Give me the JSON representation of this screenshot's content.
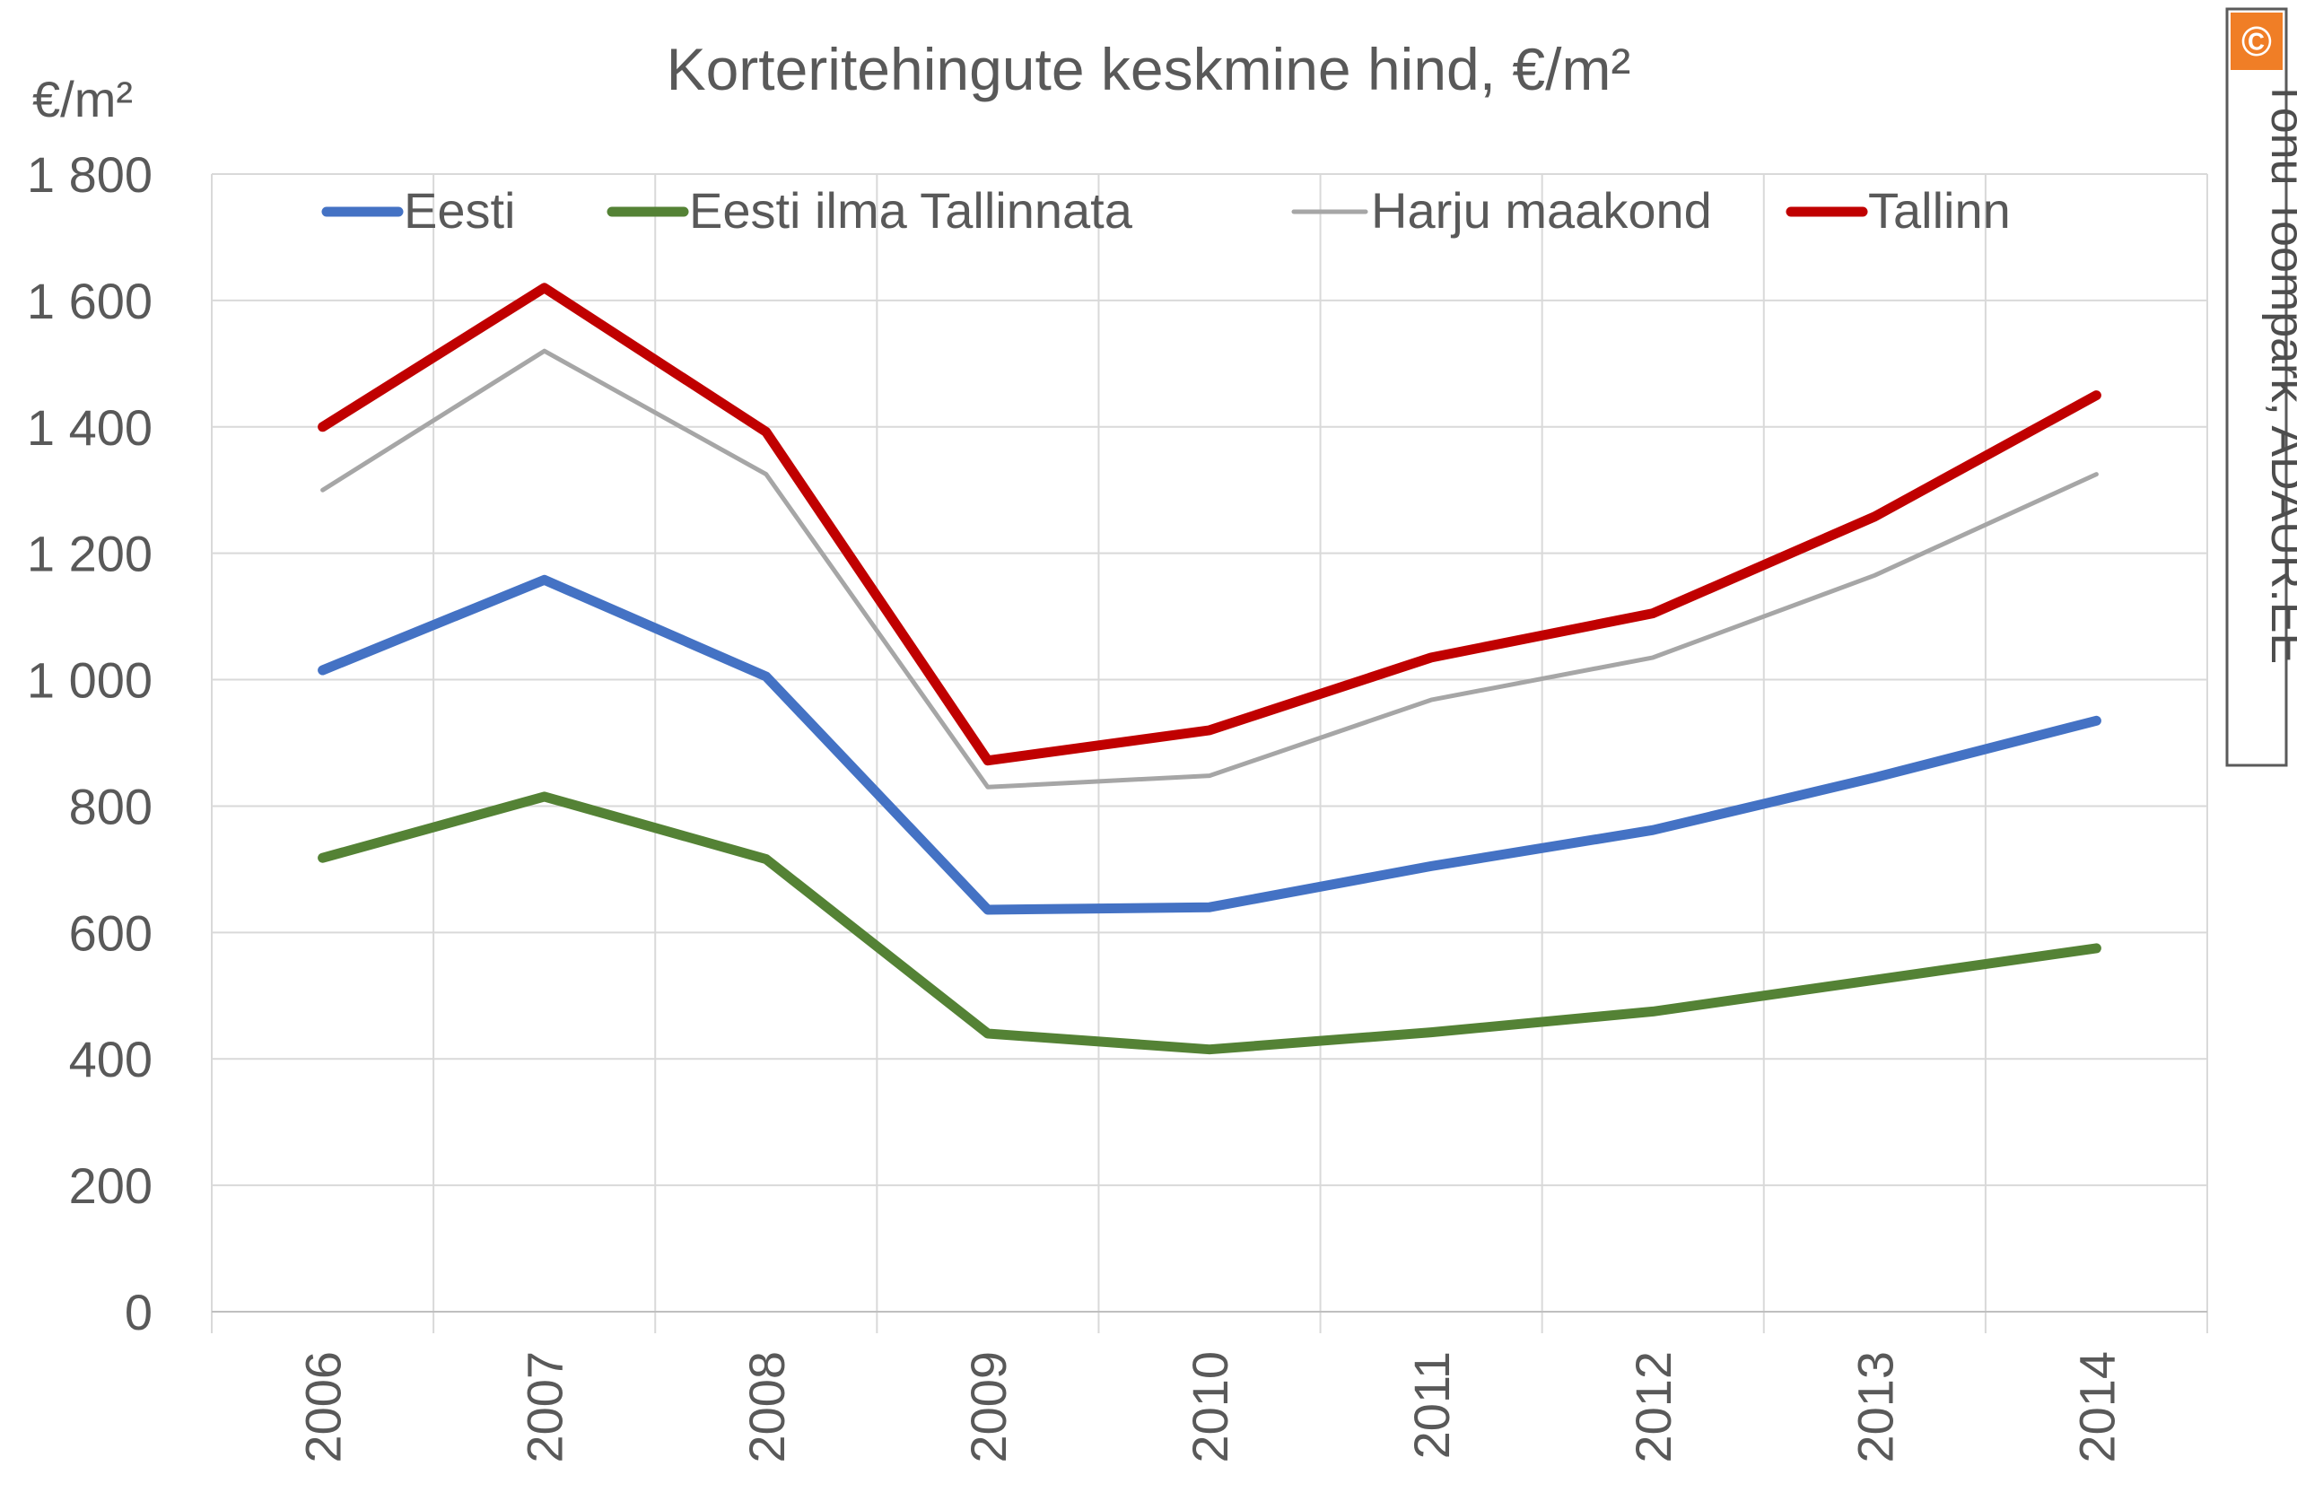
{
  "chart_data": {
    "type": "line",
    "title": "Korteritehingute keskmine hind, €/m²",
    "ylabel": "€/m²",
    "xlabel": "",
    "categories": [
      "2006",
      "2007",
      "2008",
      "2009",
      "2010",
      "2011",
      "2012",
      "2013",
      "2014"
    ],
    "ylim": [
      0,
      1800
    ],
    "yticks": [
      {
        "value": 0,
        "label": "0"
      },
      {
        "value": 200,
        "label": "200"
      },
      {
        "value": 400,
        "label": "400"
      },
      {
        "value": 600,
        "label": "600"
      },
      {
        "value": 800,
        "label": "800"
      },
      {
        "value": 1000,
        "label": "1 000"
      },
      {
        "value": 1200,
        "label": "1 200"
      },
      {
        "value": 1400,
        "label": "1 400"
      },
      {
        "value": 1600,
        "label": "1 600"
      },
      {
        "value": 1800,
        "label": "1 800"
      }
    ],
    "grid": true,
    "legend_position": "top",
    "series": [
      {
        "name": "Eesti",
        "color": "#4472c4",
        "width": "thick",
        "values": [
          1015,
          1158,
          1005,
          636,
          640,
          705,
          762,
          845,
          935
        ]
      },
      {
        "name": "Eesti ilma Tallinnata",
        "color": "#548235",
        "width": "thick",
        "values": [
          718,
          815,
          716,
          440,
          415,
          442,
          475,
          525,
          575
        ]
      },
      {
        "name": "Harju maakond",
        "color": "#a6a6a6",
        "width": "thin",
        "values": [
          1300,
          1520,
          1325,
          830,
          848,
          968,
          1035,
          1165,
          1325
        ]
      },
      {
        "name": "Tallinn",
        "color": "#c00000",
        "width": "thick",
        "values": [
          1400,
          1620,
          1392,
          872,
          920,
          1035,
          1105,
          1258,
          1450
        ]
      }
    ]
  },
  "watermark": {
    "symbol": "©",
    "text": "Tõnu Toompark, ADAUR.EE",
    "accent_color": "#f07e26"
  }
}
